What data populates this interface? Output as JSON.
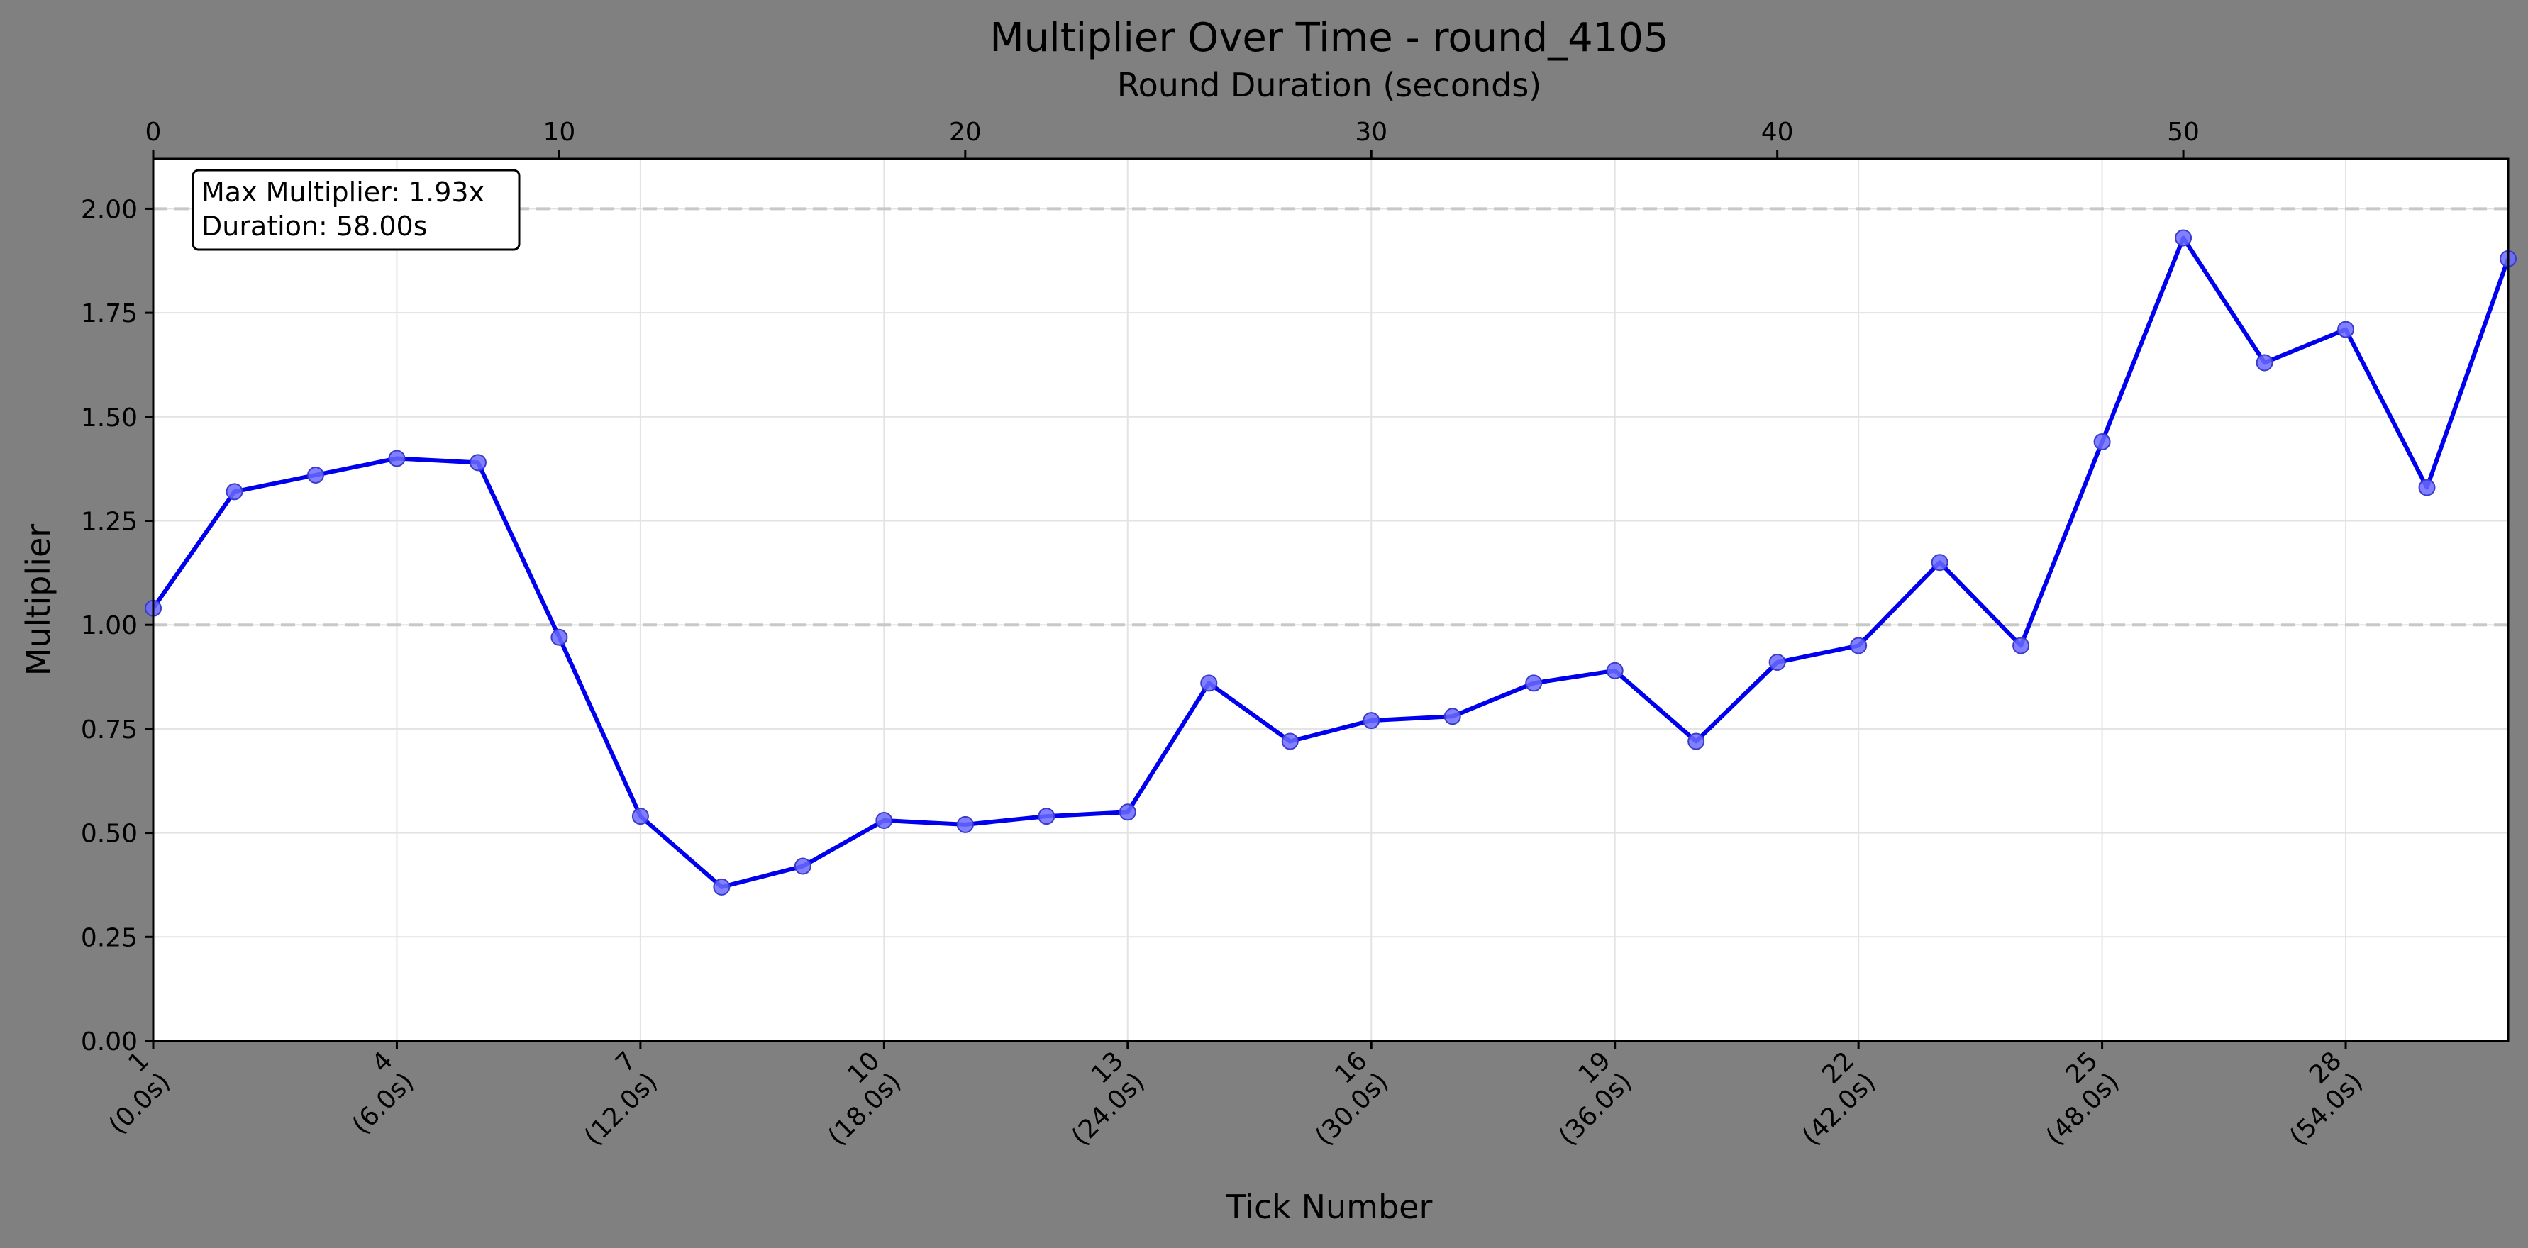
{
  "chart_data": {
    "type": "line",
    "title": "Multiplier Over Time - round_4105",
    "xlabel": "Tick Number",
    "ylabel": "Multiplier",
    "top_xlabel": "Round Duration (seconds)",
    "x": [
      1,
      2,
      3,
      4,
      5,
      6,
      7,
      8,
      9,
      10,
      11,
      12,
      13,
      14,
      15,
      16,
      17,
      18,
      19,
      20,
      21,
      22,
      23,
      24,
      25,
      26,
      27,
      28,
      29,
      30
    ],
    "series": [
      {
        "values": [
          1.04,
          1.32,
          1.36,
          1.4,
          1.39,
          0.97,
          0.54,
          0.37,
          0.42,
          0.53,
          0.52,
          0.54,
          0.55,
          0.86,
          0.72,
          0.77,
          0.78,
          0.86,
          0.89,
          0.72,
          0.91,
          0.95,
          1.15,
          0.95,
          1.44,
          1.93,
          1.63,
          1.71,
          1.33,
          1.88
        ],
        "color": "#0000ee"
      }
    ],
    "xlim": [
      1,
      30
    ],
    "ylim": [
      0,
      2.12
    ],
    "yticks": [
      "0.00",
      "0.25",
      "0.50",
      "0.75",
      "1.00",
      "1.25",
      "1.50",
      "1.75",
      "2.00"
    ],
    "xticks": [
      {
        "tick": "1",
        "time": "(0.0s)"
      },
      {
        "tick": "4",
        "time": "(6.0s)"
      },
      {
        "tick": "7",
        "time": "(12.0s)"
      },
      {
        "tick": "10",
        "time": "(18.0s)"
      },
      {
        "tick": "13",
        "time": "(24.0s)"
      },
      {
        "tick": "16",
        "time": "(30.0s)"
      },
      {
        "tick": "19",
        "time": "(36.0s)"
      },
      {
        "tick": "22",
        "time": "(42.0s)"
      },
      {
        "tick": "25",
        "time": "(48.0s)"
      },
      {
        "tick": "28",
        "time": "(54.0s)"
      }
    ],
    "top_xticks": [
      "0",
      "10",
      "20",
      "30",
      "40",
      "50"
    ],
    "top_xlim": [
      0,
      58
    ],
    "reference_lines": [
      1.0,
      2.0
    ],
    "annotation": {
      "line1": "Max Multiplier: 1.93x",
      "line2": "Duration: 58.00s"
    },
    "grid": true,
    "background_color": "#808080",
    "plot_background": "#ffffff"
  }
}
